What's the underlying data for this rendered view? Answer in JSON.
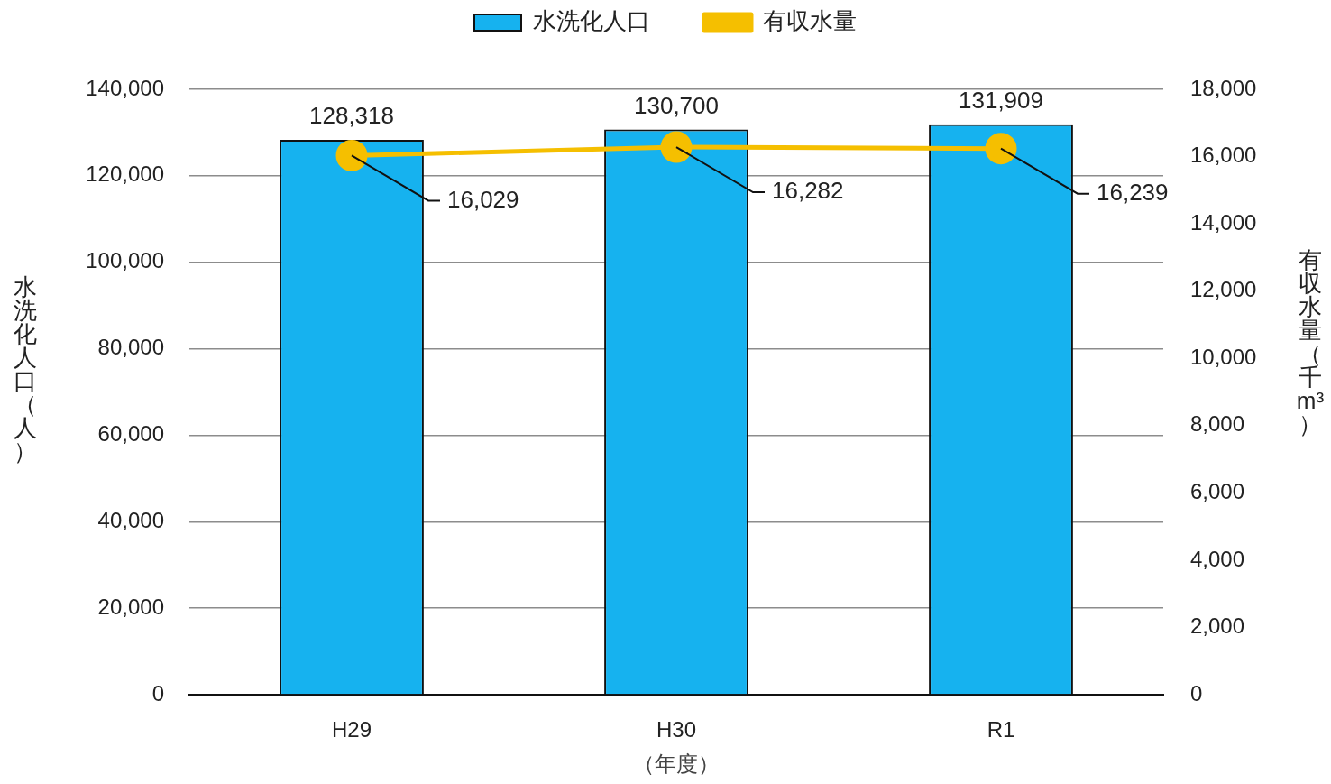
{
  "chart_data": {
    "type": "bar",
    "categories": [
      "H29",
      "H30",
      "R1"
    ],
    "series": [
      {
        "name": "水洗化人口",
        "color": "#16b2ef",
        "values": [
          128318,
          130700,
          131909
        ],
        "value_labels": [
          "128,318",
          "130,700",
          "131,909"
        ]
      },
      {
        "name": "有収水量",
        "type": "line",
        "axis": "y2",
        "color": "#f5bf00",
        "values": [
          16029,
          16282,
          16239
        ],
        "value_labels": [
          "16,029",
          "16,282",
          "16,239"
        ]
      }
    ],
    "xlabel": "（年度）",
    "ylabel": "水洗化人口（人）",
    "y2label": "有収水量（千m³）",
    "ylim": [
      0,
      140000
    ],
    "yticks": [
      {
        "value": 0,
        "label": "0"
      },
      {
        "value": 20000,
        "label": "20,000"
      },
      {
        "value": 40000,
        "label": "40,000"
      },
      {
        "value": 60000,
        "label": "60,000"
      },
      {
        "value": 80000,
        "label": "80,000"
      },
      {
        "value": 100000,
        "label": "100,000"
      },
      {
        "value": 120000,
        "label": "120,000"
      },
      {
        "value": 140000,
        "label": "140,000"
      }
    ],
    "y2lim": [
      0,
      18000
    ],
    "y2ticks": [
      {
        "value": 0,
        "label": "0"
      },
      {
        "value": 2000,
        "label": "2,000"
      },
      {
        "value": 4000,
        "label": "4,000"
      },
      {
        "value": 6000,
        "label": "6,000"
      },
      {
        "value": 8000,
        "label": "8,000"
      },
      {
        "value": 10000,
        "label": "10,000"
      },
      {
        "value": 12000,
        "label": "12,000"
      },
      {
        "value": 14000,
        "label": "14,000"
      },
      {
        "value": 16000,
        "label": "16,000"
      },
      {
        "value": 18000,
        "label": "18,000"
      }
    ],
    "grid": "y",
    "legend": "top",
    "marker": "circle"
  }
}
